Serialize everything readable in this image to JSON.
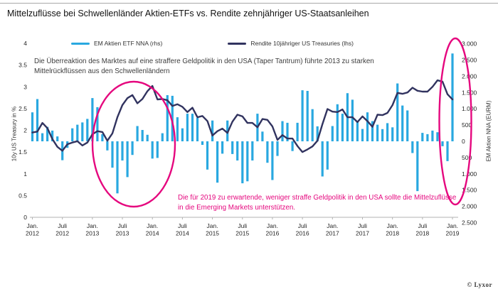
{
  "ui": {
    "title": "Mittelzuflüsse bei Schwellenländer Aktien-ETFs vs. Rendite zehnjähriger US-Staatsanleihen",
    "legend": {
      "bars_label": "EM Aktien ETF NNA (rhs)",
      "line_label": "Rendite 10jähriger US Treasuries (lhs)"
    },
    "annotation_taper": "Die Überreaktion des Marktes auf eine straffere Geldpolitik in den USA (Taper Tantrum) führte 2013 zu starken Mittelrückflüssen aus den Schwellenländern",
    "annotation_outlook": "Die für 2019 zu erwartende, weniger straffe Geldpolitik in den USA sollte die Mittelzuflüsse in die Emerging Markets unterstützen.",
    "logo_text": "© Lyxor",
    "colors": {
      "bar": "#29A8E0",
      "line": "#31335F",
      "pink": "#E5077E",
      "axis": "#b3b3b3",
      "tick_text": "#262626"
    }
  },
  "chart_data": {
    "type": "bar+line",
    "title": "Mittelzuflüsse bei Schwellenländer Aktien-ETFs vs. Rendite zehnjähriger US-Staatsanleihen",
    "x": [
      "2012-01",
      "2012-02",
      "2012-03",
      "2012-04",
      "2012-05",
      "2012-06",
      "2012-07",
      "2012-08",
      "2012-09",
      "2012-10",
      "2012-11",
      "2012-12",
      "2013-01",
      "2013-02",
      "2013-03",
      "2013-04",
      "2013-05",
      "2013-06",
      "2013-07",
      "2013-08",
      "2013-09",
      "2013-10",
      "2013-11",
      "2013-12",
      "2014-01",
      "2014-02",
      "2014-03",
      "2014-04",
      "2014-05",
      "2014-06",
      "2014-07",
      "2014-08",
      "2014-09",
      "2014-10",
      "2014-11",
      "2014-12",
      "2015-01",
      "2015-02",
      "2015-03",
      "2015-04",
      "2015-05",
      "2015-06",
      "2015-07",
      "2015-08",
      "2015-09",
      "2015-10",
      "2015-11",
      "2015-12",
      "2016-01",
      "2016-02",
      "2016-03",
      "2016-04",
      "2016-05",
      "2016-06",
      "2016-07",
      "2016-08",
      "2016-09",
      "2016-10",
      "2016-11",
      "2016-12",
      "2017-01",
      "2017-02",
      "2017-03",
      "2017-04",
      "2017-05",
      "2017-06",
      "2017-07",
      "2017-08",
      "2017-09",
      "2017-10",
      "2017-11",
      "2017-12",
      "2018-01",
      "2018-02",
      "2018-03",
      "2018-04",
      "2018-05",
      "2018-06",
      "2018-07",
      "2018-08",
      "2018-09",
      "2018-10",
      "2018-11",
      "2018-12",
      "2019-01"
    ],
    "x_tick_labels": [
      [
        "Jan.",
        "2012"
      ],
      [
        "Juli",
        "2012"
      ],
      [
        "Jan.",
        "2013"
      ],
      [
        "Juli",
        "2013"
      ],
      [
        "Jan.",
        "2014"
      ],
      [
        "Juli",
        "2014"
      ],
      [
        "Jan.",
        "2015"
      ],
      [
        "Juli",
        "2015"
      ],
      [
        "Jan.",
        "2016"
      ],
      [
        "Juli",
        "2016"
      ],
      [
        "Jan.",
        "2017"
      ],
      [
        "Juli",
        "2017"
      ],
      [
        "Jan.",
        "2018"
      ],
      [
        "Juli",
        "2018"
      ],
      [
        "Jan.",
        "2019"
      ]
    ],
    "left_axis": {
      "label": "10y US Treasury in %",
      "range": [
        0,
        4
      ],
      "ticks": [
        "4",
        "3.5",
        "3",
        "2.5",
        "2",
        "1.5",
        "1",
        "0.5",
        "0"
      ]
    },
    "right_axis": {
      "label": "EM Aktien NNA (EURM)",
      "range": [
        -2500,
        3000
      ],
      "ticks": [
        "3.000",
        "2.500",
        "2.000",
        "1.500",
        "1.000",
        "500",
        "0",
        "500",
        "1.000",
        "1.500",
        "2.000",
        "2.500"
      ]
    },
    "grid": false,
    "legend_position": "top",
    "series": [
      {
        "name": "EM Aktien ETF NNA (rhs)",
        "type": "bar",
        "axis": "right",
        "unit": "EUR M",
        "values": [
          890,
          1300,
          250,
          445,
          330,
          150,
          -580,
          -200,
          400,
          510,
          580,
          690,
          1330,
          1050,
          220,
          -280,
          -810,
          -1600,
          -590,
          -1100,
          -420,
          470,
          350,
          200,
          -530,
          -510,
          250,
          1420,
          1400,
          740,
          400,
          850,
          850,
          720,
          -110,
          -870,
          640,
          -1270,
          -380,
          640,
          -390,
          -590,
          -1290,
          -1230,
          -590,
          850,
          300,
          -660,
          -1190,
          -450,
          620,
          570,
          -300,
          570,
          1570,
          1550,
          990,
          460,
          -1080,
          -870,
          470,
          1140,
          850,
          1480,
          1280,
          600,
          380,
          890,
          620,
          510,
          375,
          560,
          430,
          1780,
          1100,
          950,
          -360,
          -1530,
          260,
          220,
          330,
          280,
          -150,
          -610,
          2700
        ]
      },
      {
        "name": "Rendite 10jähriger US Treasuries (lhs)",
        "type": "line",
        "axis": "left",
        "unit": "%",
        "values": [
          1.95,
          1.97,
          2.17,
          2.05,
          1.8,
          1.62,
          1.53,
          1.68,
          1.72,
          1.75,
          1.65,
          1.72,
          1.91,
          1.98,
          1.96,
          1.76,
          1.93,
          2.3,
          2.58,
          2.74,
          2.81,
          2.62,
          2.72,
          2.9,
          3.02,
          2.71,
          2.72,
          2.69,
          2.56,
          2.6,
          2.54,
          2.42,
          2.52,
          2.3,
          2.33,
          2.21,
          1.88,
          1.98,
          2.04,
          1.94,
          2.2,
          2.36,
          2.32,
          2.17,
          2.17,
          2.07,
          2.26,
          2.24,
          2.09,
          1.78,
          1.89,
          1.81,
          1.81,
          1.64,
          1.5,
          1.56,
          1.63,
          1.76,
          2.14,
          2.49,
          2.43,
          2.42,
          2.48,
          2.3,
          2.3,
          2.19,
          2.32,
          2.21,
          2.08,
          2.36,
          2.35,
          2.4,
          2.58,
          2.86,
          2.84,
          2.87,
          2.98,
          2.91,
          2.89,
          2.89,
          3.0,
          3.15,
          3.12,
          2.83,
          2.71
        ]
      }
    ],
    "highlight_ellipses": [
      {
        "name": "taper-tantrum-2013",
        "cx": 188,
        "cy": 203,
        "rx": 58,
        "ry": 88
      },
      {
        "name": "jan-2019-inflow",
        "cx": 640,
        "cy": 171,
        "rx": 22.5,
        "ry": 117
      }
    ]
  }
}
